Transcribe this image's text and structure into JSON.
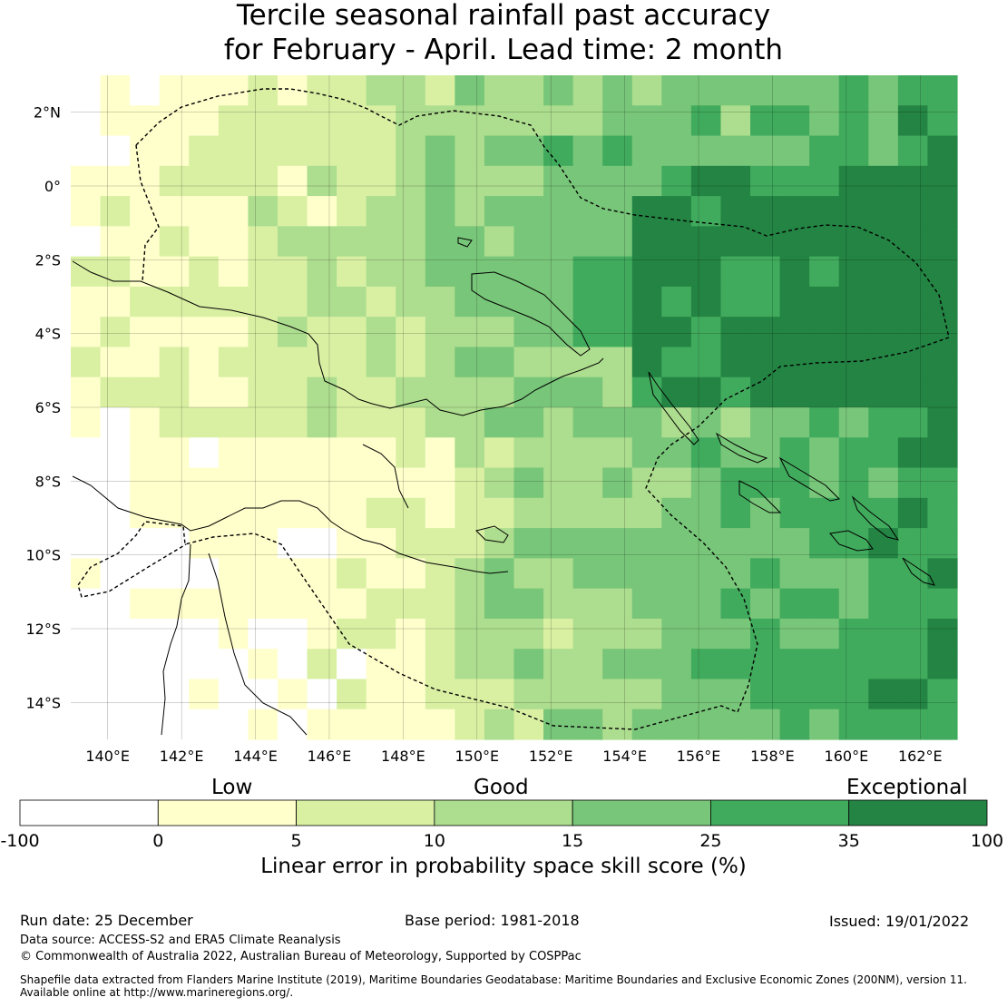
{
  "title": {
    "line1": "Tercile seasonal rainfall past accuracy",
    "line2": "for February - April. Lead time: 2 month"
  },
  "map": {
    "lon_range": [
      139,
      163
    ],
    "lat_range": [
      -15,
      3
    ],
    "lat_ticks": [
      "2°N",
      "0°",
      "2°S",
      "4°S",
      "6°S",
      "8°S",
      "10°S",
      "12°S",
      "14°S"
    ],
    "lon_ticks": [
      "140°E",
      "142°E",
      "144°E",
      "146°E",
      "148°E",
      "150°E",
      "152°E",
      "154°E",
      "156°E",
      "158°E",
      "160°E",
      "162°E"
    ]
  },
  "legend": {
    "categories": [
      "Low",
      "Good",
      "Exceptional"
    ],
    "ticks": [
      "-100",
      "0",
      "5",
      "10",
      "15",
      "25",
      "35",
      "100"
    ],
    "colors": [
      "#ffffff",
      "#ffffcc",
      "#d9f0a3",
      "#addd8e",
      "#78c679",
      "#41ab5d",
      "#238443"
    ],
    "title": "Linear error in probability space skill score (%)"
  },
  "footer": {
    "run_date": "Run date: 25 December",
    "base_period": "Base period: 1981-2018",
    "issued": "Issued: 19/01/2022",
    "data_source": "Data source: ACCESS-S2 and ERA5 Climate Reanalysis",
    "copyright": "© Commonwealth of Australia 2022, Australian Bureau of Meteorology, Supported by COSPPac",
    "shapefile_1": "Shapefile data extracted from Flanders Marine Institute (2019), Maritime Boundaries Geodatabase: Maritime Boundaries and Exclusive Economic Zones (200NM), version 11.",
    "shapefile_2": "Available online at http://www.marineregions.org/."
  }
}
